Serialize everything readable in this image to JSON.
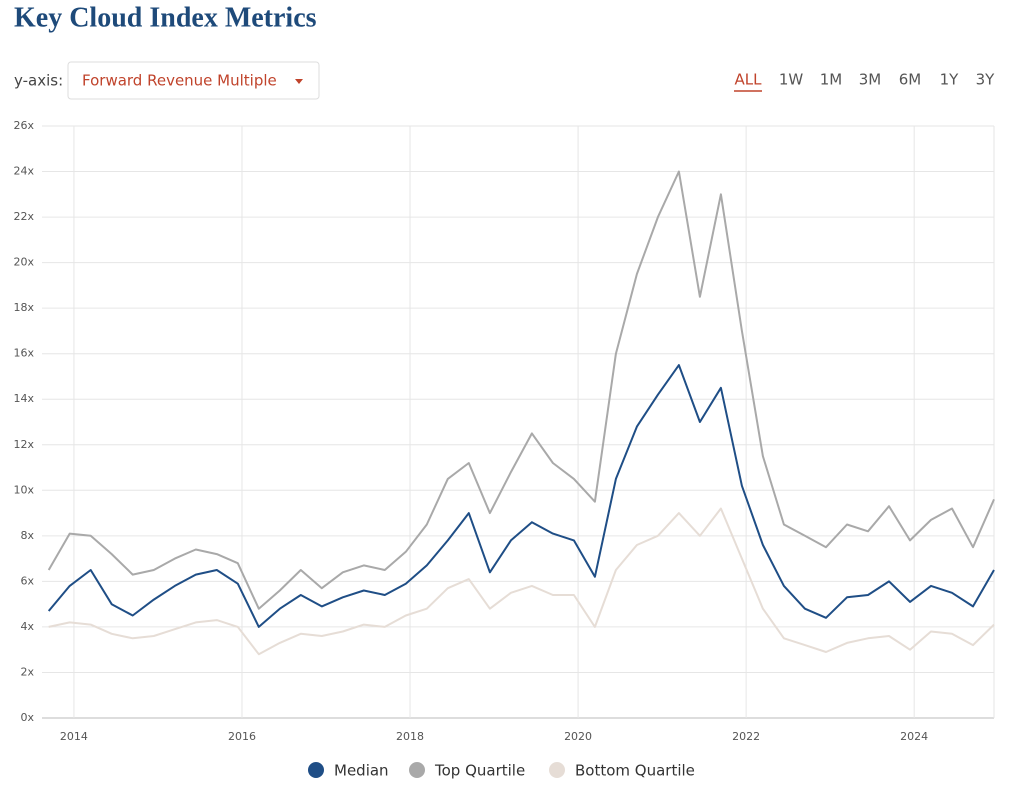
{
  "controls": {
    "axis_label": "y-axis:",
    "metric": "Forward Revenue Multiple",
    "ranges": [
      "ALL",
      "1W",
      "1M",
      "3M",
      "6M",
      "1Y",
      "3Y"
    ],
    "active_range": 0
  },
  "chart_data": {
    "type": "line",
    "title": "Key Cloud Index Metrics",
    "x": [
      2013.7,
      2013.95,
      2014.2,
      2014.45,
      2014.7,
      2014.95,
      2015.2,
      2015.45,
      2015.7,
      2015.95,
      2016.2,
      2016.45,
      2016.7,
      2016.95,
      2017.2,
      2017.45,
      2017.7,
      2017.95,
      2018.2,
      2018.45,
      2018.7,
      2018.95,
      2019.2,
      2019.45,
      2019.7,
      2019.95,
      2020.2,
      2020.45,
      2020.7,
      2020.95,
      2021.2,
      2021.45,
      2021.7,
      2021.95,
      2022.2,
      2022.45,
      2022.7,
      2022.95,
      2023.2,
      2023.45,
      2023.7,
      2023.95,
      2024.2,
      2024.45,
      2024.7,
      2024.95
    ],
    "series": [
      {
        "name": "Median",
        "color": "#1f4e86",
        "values": [
          4.7,
          5.8,
          6.5,
          5.0,
          4.5,
          5.2,
          5.8,
          6.3,
          6.5,
          5.9,
          4.0,
          4.8,
          5.4,
          4.9,
          5.3,
          5.6,
          5.4,
          5.9,
          6.7,
          7.8,
          9.0,
          6.4,
          7.8,
          8.6,
          8.1,
          7.8,
          6.2,
          10.5,
          12.8,
          14.2,
          15.5,
          13.0,
          14.5,
          10.2,
          7.6,
          5.8,
          4.8,
          4.4,
          5.3,
          5.4,
          6.0,
          5.1,
          5.8,
          5.5,
          4.9,
          6.5
        ]
      },
      {
        "name": "Top Quartile",
        "color": "#a9a9a9",
        "values": [
          6.5,
          8.1,
          8.0,
          7.2,
          6.3,
          6.5,
          7.0,
          7.4,
          7.2,
          6.8,
          4.8,
          5.6,
          6.5,
          5.7,
          6.4,
          6.7,
          6.5,
          7.3,
          8.5,
          10.5,
          11.2,
          9.0,
          10.8,
          12.5,
          11.2,
          10.5,
          9.5,
          16.0,
          19.5,
          22.0,
          24.0,
          18.5,
          23.0,
          17.0,
          11.5,
          8.5,
          8.0,
          7.5,
          8.5,
          8.2,
          9.3,
          7.8,
          8.7,
          9.2,
          7.5,
          9.6
        ]
      },
      {
        "name": "Bottom Quartile",
        "color": "#e6ddd6",
        "values": [
          4.0,
          4.2,
          4.1,
          3.7,
          3.5,
          3.6,
          3.9,
          4.2,
          4.3,
          4.0,
          2.8,
          3.3,
          3.7,
          3.6,
          3.8,
          4.1,
          4.0,
          4.5,
          4.8,
          5.7,
          6.1,
          4.8,
          5.5,
          5.8,
          5.4,
          5.4,
          4.0,
          6.5,
          7.6,
          8.0,
          9.0,
          8.0,
          9.2,
          7.0,
          4.8,
          3.5,
          3.2,
          2.9,
          3.3,
          3.5,
          3.6,
          3.0,
          3.8,
          3.7,
          3.2,
          4.1
        ]
      }
    ],
    "xlim": [
      2013.62,
      2024.95
    ],
    "xticks": [
      2014,
      2016,
      2018,
      2020,
      2022,
      2024
    ],
    "ylim": [
      0,
      26
    ],
    "yticks": [
      {
        "value": 0,
        "label": "0x"
      },
      {
        "value": 2,
        "label": "2x"
      },
      {
        "value": 4,
        "label": "4x"
      },
      {
        "value": 6,
        "label": "6x"
      },
      {
        "value": 8,
        "label": "8x"
      },
      {
        "value": 10,
        "label": "10x"
      },
      {
        "value": 12,
        "label": "12x"
      },
      {
        "value": 14,
        "label": "14x"
      },
      {
        "value": 16,
        "label": "16x"
      },
      {
        "value": 18,
        "label": "18x"
      },
      {
        "value": 20,
        "label": "20x"
      },
      {
        "value": 22,
        "label": "22x"
      },
      {
        "value": 24,
        "label": "24x"
      },
      {
        "value": 26,
        "label": "26x"
      }
    ],
    "grid": true,
    "legend": "bottom"
  }
}
